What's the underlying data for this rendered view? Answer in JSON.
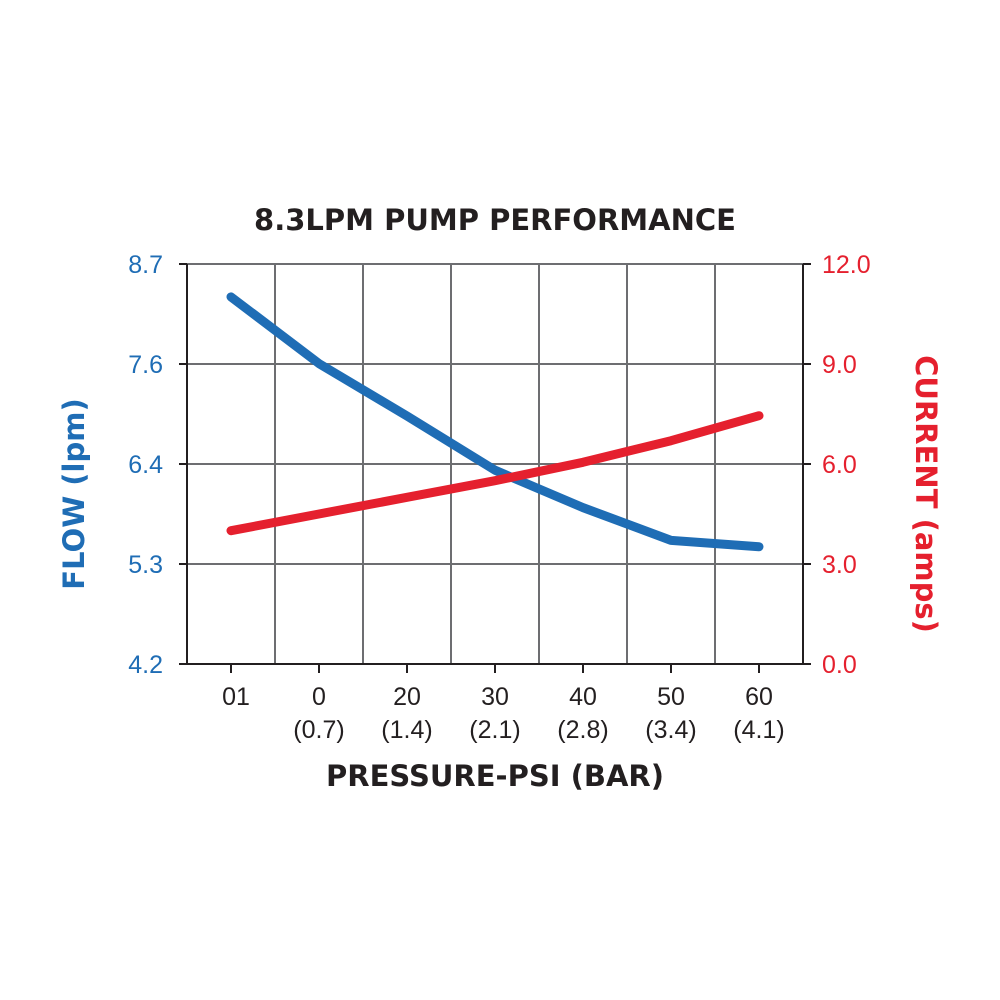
{
  "chart_data": {
    "type": "line",
    "title": "8.3LPM PUMP PERFORMANCE",
    "xlabel": "PRESSURE-PSI (BAR)",
    "x_categories": [
      "01",
      "0",
      "20",
      "30",
      "40",
      "50",
      "60"
    ],
    "x_sublabels": [
      "",
      "(0.7)",
      "(1.4)",
      "(2.1)",
      "(2.8)",
      "(3.4)",
      "(4.1)"
    ],
    "y_left": {
      "label": "FLOW (lpm)",
      "ticks": [
        "8.7",
        "7.6",
        "6.4",
        "5.3",
        "4.2"
      ],
      "ylim": [
        4.2,
        8.7
      ],
      "color": "#1f6db5"
    },
    "y_right": {
      "label": "CURRENT (amps)",
      "ticks": [
        "12.0",
        "9.0",
        "6.0",
        "3.0",
        "0.0"
      ],
      "ylim": [
        0.0,
        12.0
      ],
      "color": "#e5202e"
    },
    "grid": true,
    "series": [
      {
        "name": "Flow",
        "axis": "left",
        "color": "#1f6db5",
        "values": [
          8.33,
          7.58,
          6.99,
          6.38,
          5.96,
          5.59,
          5.52
        ]
      },
      {
        "name": "Current",
        "axis": "right",
        "color": "#e5202e",
        "values": [
          4.0,
          4.5,
          5.0,
          5.5,
          6.05,
          6.7,
          7.45
        ]
      }
    ]
  }
}
